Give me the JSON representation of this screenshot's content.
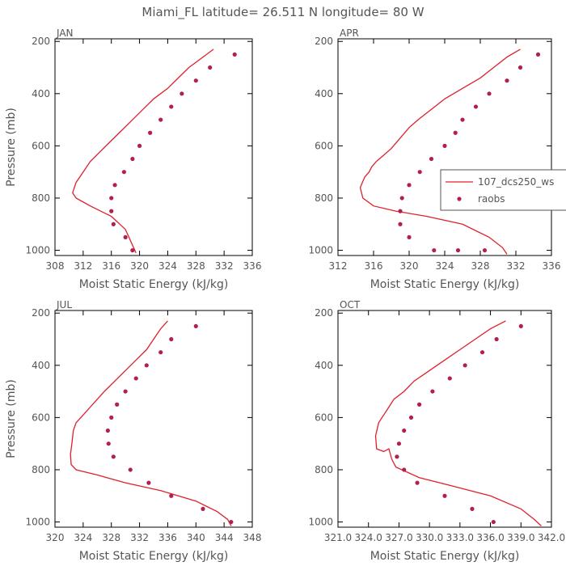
{
  "figure": {
    "title": "Miami_FL   latitude= 26.511 N longitude= 80 W"
  },
  "styles": {
    "line_color": "#e0202a",
    "dot_color": "#b02050",
    "axis_color": "#000000",
    "text_color": "#555555"
  },
  "chart_data": [
    {
      "type": "line",
      "panel_label": "JAN",
      "xlabel": "Moist Static Energy (kJ/kg)",
      "ylabel": "Pressure (mb)",
      "xlim": [
        308,
        336
      ],
      "ylim": [
        1020,
        190
      ],
      "xticks": [
        308,
        312,
        316,
        320,
        324,
        328,
        332,
        336
      ],
      "yticks": [
        200,
        400,
        600,
        800,
        1000
      ],
      "series": [
        {
          "kind": "line",
          "x": [
            330.5,
            329,
            327,
            325.5,
            324,
            322,
            320.5,
            319,
            317.5,
            316,
            314.5,
            313,
            312,
            311,
            310.5,
            311,
            313,
            316,
            318,
            319.5
          ],
          "y": [
            230,
            260,
            300,
            340,
            380,
            420,
            460,
            500,
            540,
            580,
            620,
            660,
            700,
            740,
            780,
            800,
            830,
            870,
            920,
            1010
          ]
        },
        {
          "kind": "scatter",
          "x": [
            333.5,
            330,
            328,
            326,
            324.5,
            323,
            321.5,
            320,
            319,
            317.8,
            316.5,
            316,
            316,
            316.3,
            318,
            319
          ],
          "y": [
            250,
            300,
            350,
            400,
            450,
            500,
            550,
            600,
            650,
            700,
            750,
            800,
            850,
            900,
            950,
            1000
          ]
        }
      ]
    },
    {
      "type": "line",
      "panel_label": "APR",
      "xlabel": "Moist Static Energy (kJ/kg)",
      "ylabel": "",
      "xlim": [
        312,
        336
      ],
      "ylim": [
        1020,
        190
      ],
      "xticks": [
        312,
        316,
        320,
        324,
        328,
        332,
        336
      ],
      "yticks": [
        200,
        400,
        600,
        800,
        1000
      ],
      "legend": {
        "position": "right",
        "entries": [
          "107_dcs250_ws",
          "raobs"
        ]
      },
      "series": [
        {
          "name": "107_dcs250_ws",
          "kind": "line",
          "x": [
            332.5,
            331,
            329.5,
            328,
            326,
            324,
            322.5,
            321,
            320,
            319,
            318,
            317,
            316.3,
            315.8,
            315.5,
            315,
            314.5,
            314.8,
            316,
            318.5,
            322,
            326,
            329,
            330.5,
            331
          ],
          "y": [
            230,
            260,
            300,
            340,
            380,
            420,
            460,
            500,
            530,
            570,
            610,
            640,
            660,
            680,
            700,
            720,
            760,
            800,
            830,
            850,
            870,
            900,
            950,
            990,
            1015
          ]
        },
        {
          "name": "raobs",
          "kind": "scatter",
          "x": [
            334.5,
            332.5,
            331,
            329,
            327.5,
            326,
            325.2,
            324,
            322.5,
            321.2,
            320,
            319.2,
            319,
            319,
            320,
            322.8,
            325.5,
            328.5
          ],
          "y": [
            250,
            300,
            350,
            400,
            450,
            500,
            550,
            600,
            650,
            700,
            750,
            800,
            850,
            900,
            950,
            1000,
            1000,
            1000
          ]
        }
      ]
    },
    {
      "type": "line",
      "panel_label": "JUL",
      "xlabel": "Moist Static Energy (kJ/kg)",
      "ylabel": "Pressure (mb)",
      "xlim": [
        320,
        348
      ],
      "ylim": [
        1020,
        190
      ],
      "xticks": [
        320,
        324,
        328,
        332,
        336,
        340,
        344,
        348
      ],
      "yticks": [
        200,
        400,
        600,
        800,
        1000
      ],
      "series": [
        {
          "kind": "line",
          "x": [
            336,
            335,
            334,
            333,
            331.5,
            330,
            328.5,
            327,
            326,
            325,
            324,
            323,
            322.6,
            322.4,
            322.2,
            322.3,
            323,
            326,
            330,
            335,
            340,
            343,
            344.5,
            345
          ],
          "y": [
            230,
            260,
            300,
            340,
            380,
            420,
            460,
            500,
            530,
            560,
            590,
            620,
            650,
            700,
            740,
            780,
            800,
            820,
            850,
            880,
            920,
            960,
            990,
            1015
          ]
        },
        {
          "kind": "scatter",
          "x": [
            340,
            336.5,
            335,
            333,
            331.5,
            330,
            328.8,
            328,
            327.5,
            327.6,
            328.3,
            330.7,
            333.3,
            336.5,
            341,
            345
          ],
          "y": [
            250,
            300,
            350,
            400,
            450,
            500,
            550,
            600,
            650,
            700,
            750,
            800,
            850,
            900,
            950,
            1000
          ]
        }
      ]
    },
    {
      "type": "line",
      "panel_label": "OCT",
      "xlabel": "Moist Static Energy (kJ/kg)",
      "ylabel": "",
      "xlim": [
        321.0,
        342.0
      ],
      "ylim": [
        1020,
        190
      ],
      "xticks": [
        321.0,
        324.0,
        327.0,
        330.0,
        333.0,
        336.0,
        339.0,
        342.0
      ],
      "xtick_labels": [
        "321.0",
        "324.0",
        "327.0",
        "330.0",
        "333.0",
        "336.0",
        "339.0",
        "342.0"
      ],
      "yticks": [
        200,
        400,
        600,
        800,
        1000
      ],
      "series": [
        {
          "kind": "line",
          "x": [
            337.5,
            336,
            334.5,
            333,
            331.5,
            330,
            328.5,
            327.5,
            326.5,
            326,
            325.5,
            325,
            324.7,
            324.8,
            325.5,
            326,
            326.3,
            326.7,
            329,
            332,
            336,
            339,
            340.3,
            341
          ],
          "y": [
            230,
            260,
            300,
            340,
            380,
            420,
            460,
            500,
            530,
            560,
            590,
            620,
            670,
            720,
            730,
            720,
            760,
            790,
            830,
            860,
            900,
            950,
            990,
            1015
          ]
        },
        {
          "kind": "scatter",
          "x": [
            339,
            336.6,
            335.2,
            333.5,
            332,
            330.3,
            329,
            328.2,
            327.5,
            327,
            326.8,
            327.5,
            328.8,
            331.5,
            334.2,
            336.3
          ],
          "y": [
            250,
            300,
            350,
            400,
            450,
            500,
            550,
            600,
            650,
            700,
            750,
            800,
            850,
            900,
            950,
            1000
          ]
        }
      ]
    }
  ]
}
